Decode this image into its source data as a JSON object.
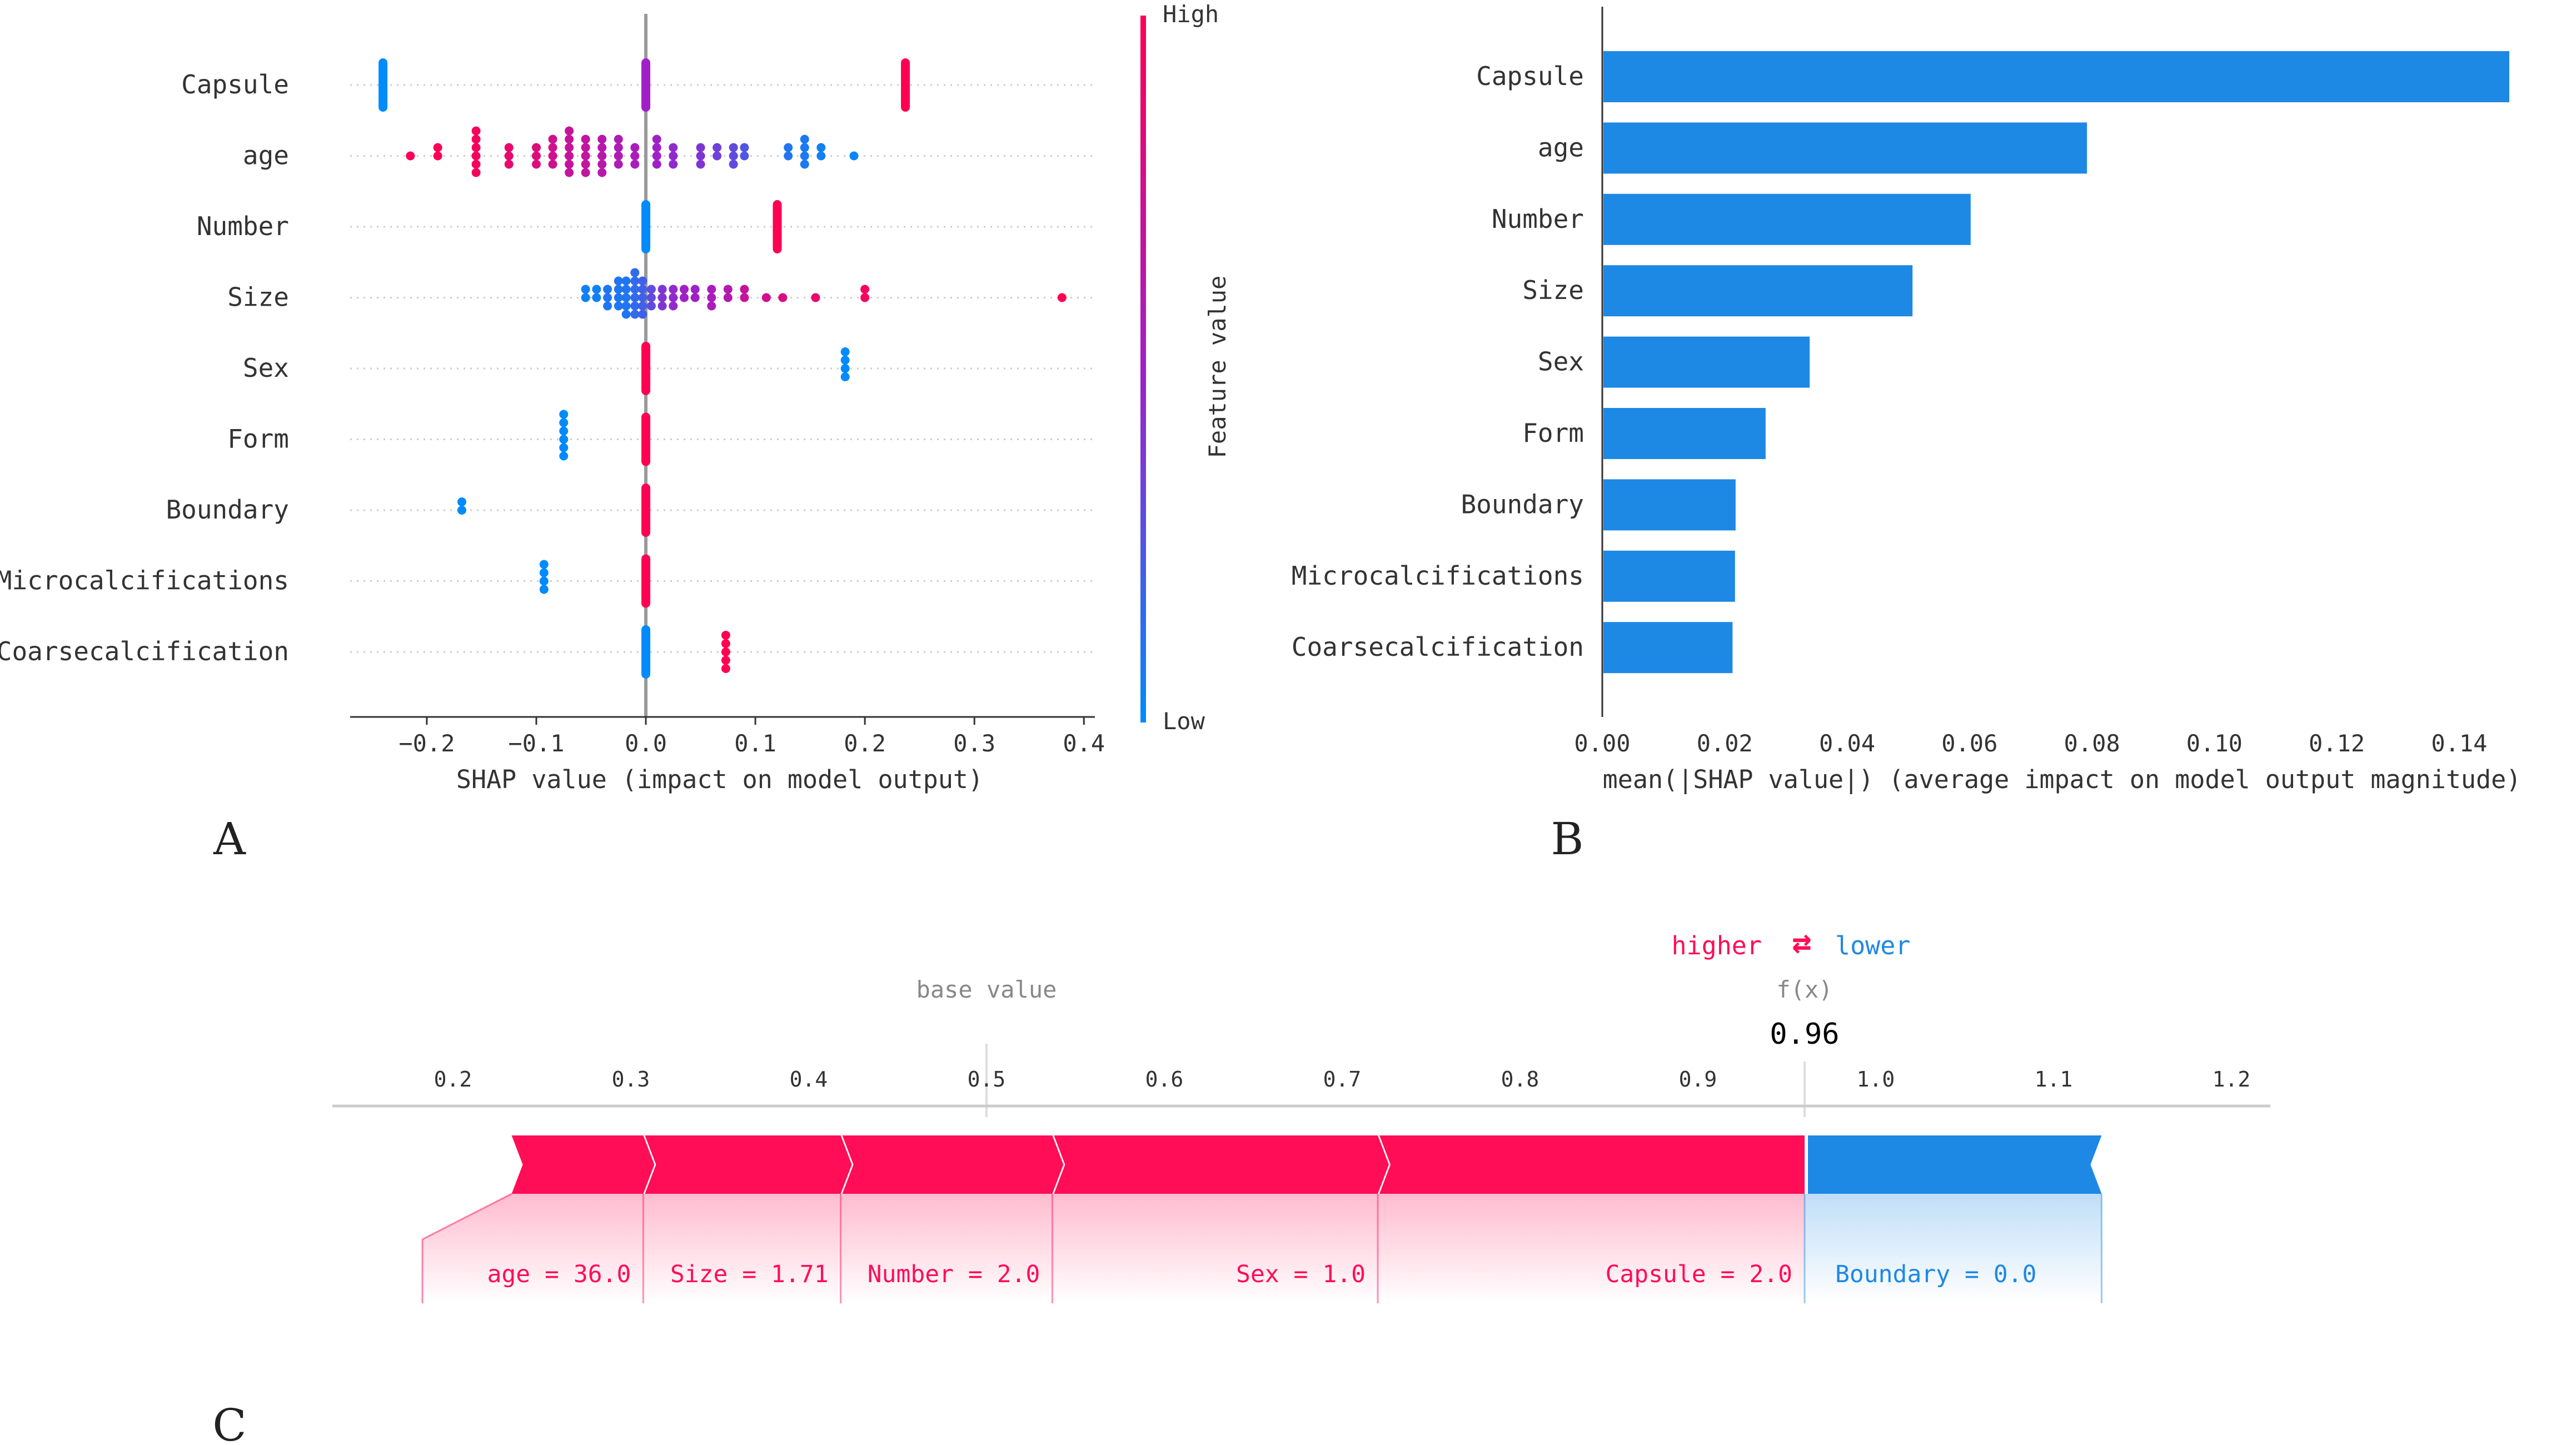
{
  "colors": {
    "high": "#ff0d57",
    "low": "#1e88e5",
    "mid": "#a020c8",
    "grid": "#cccccc",
    "axis": "#333333",
    "text": "#333333",
    "force_text_grey": "#888888"
  },
  "panel_labels": {
    "a": "A",
    "b": "B",
    "c": "C"
  },
  "chart_data": [
    {
      "id": "A",
      "type": "scatter",
      "subtype": "shap-beeswarm",
      "xlabel": "SHAP value (impact on model output)",
      "xlim": [
        -0.27,
        0.41
      ],
      "xticks": [
        -0.2,
        -0.1,
        0.0,
        0.1,
        0.2,
        0.3,
        0.4
      ],
      "xtick_labels": [
        "−0.2",
        "−0.1",
        "0.0",
        "0.1",
        "0.2",
        "0.3",
        "0.4"
      ],
      "features": [
        "Capsule",
        "age",
        "Number",
        "Size",
        "Sex",
        "Form",
        "Boundary",
        "Microcalcifications",
        "Coarsecalcification"
      ],
      "colorbar": {
        "label": "Feature value",
        "high": "High",
        "low": "Low"
      },
      "series": [
        {
          "feature": "Capsule",
          "points": [
            {
              "x": -0.24,
              "v": 0.0,
              "n": 10
            },
            {
              "x": 0.0,
              "v": 0.5,
              "n": 10
            },
            {
              "x": 0.237,
              "v": 1.0,
              "n": 10
            }
          ]
        },
        {
          "feature": "age",
          "points": [
            {
              "x": -0.215,
              "v": 0.98,
              "n": 1
            },
            {
              "x": -0.19,
              "v": 0.98,
              "n": 2
            },
            {
              "x": -0.155,
              "v": 0.95,
              "n": 6
            },
            {
              "x": -0.125,
              "v": 0.88,
              "n": 3
            },
            {
              "x": -0.1,
              "v": 0.82,
              "n": 3
            },
            {
              "x": -0.085,
              "v": 0.75,
              "n": 4
            },
            {
              "x": -0.07,
              "v": 0.7,
              "n": 6
            },
            {
              "x": -0.055,
              "v": 0.68,
              "n": 5
            },
            {
              "x": -0.04,
              "v": 0.62,
              "n": 5
            },
            {
              "x": -0.025,
              "v": 0.58,
              "n": 4
            },
            {
              "x": -0.01,
              "v": 0.55,
              "n": 3
            },
            {
              "x": 0.01,
              "v": 0.5,
              "n": 4
            },
            {
              "x": 0.025,
              "v": 0.45,
              "n": 3
            },
            {
              "x": 0.05,
              "v": 0.4,
              "n": 3
            },
            {
              "x": 0.065,
              "v": 0.35,
              "n": 2
            },
            {
              "x": 0.08,
              "v": 0.3,
              "n": 3
            },
            {
              "x": 0.09,
              "v": 0.25,
              "n": 2
            },
            {
              "x": 0.13,
              "v": 0.1,
              "n": 2
            },
            {
              "x": 0.145,
              "v": 0.08,
              "n": 4
            },
            {
              "x": 0.16,
              "v": 0.05,
              "n": 2
            },
            {
              "x": 0.19,
              "v": 0.02,
              "n": 1
            }
          ]
        },
        {
          "feature": "Number",
          "points": [
            {
              "x": 0.0,
              "v": 0.0,
              "n": 10
            },
            {
              "x": 0.12,
              "v": 1.0,
              "n": 10
            }
          ]
        },
        {
          "feature": "Size",
          "points": [
            {
              "x": -0.055,
              "v": 0.05,
              "n": 2
            },
            {
              "x": -0.045,
              "v": 0.05,
              "n": 2
            },
            {
              "x": -0.035,
              "v": 0.1,
              "n": 3
            },
            {
              "x": -0.025,
              "v": 0.1,
              "n": 4
            },
            {
              "x": -0.018,
              "v": 0.1,
              "n": 5
            },
            {
              "x": -0.01,
              "v": 0.15,
              "n": 6
            },
            {
              "x": -0.003,
              "v": 0.2,
              "n": 5
            },
            {
              "x": 0.005,
              "v": 0.3,
              "n": 3
            },
            {
              "x": 0.015,
              "v": 0.4,
              "n": 3
            },
            {
              "x": 0.025,
              "v": 0.45,
              "n": 3
            },
            {
              "x": 0.035,
              "v": 0.5,
              "n": 2
            },
            {
              "x": 0.045,
              "v": 0.5,
              "n": 2
            },
            {
              "x": 0.06,
              "v": 0.55,
              "n": 3
            },
            {
              "x": 0.075,
              "v": 0.6,
              "n": 2
            },
            {
              "x": 0.09,
              "v": 0.7,
              "n": 2
            },
            {
              "x": 0.11,
              "v": 0.75,
              "n": 1
            },
            {
              "x": 0.125,
              "v": 0.8,
              "n": 1
            },
            {
              "x": 0.155,
              "v": 0.9,
              "n": 1
            },
            {
              "x": 0.2,
              "v": 0.95,
              "n": 2
            },
            {
              "x": 0.38,
              "v": 1.0,
              "n": 1
            }
          ]
        },
        {
          "feature": "Sex",
          "points": [
            {
              "x": 0.0,
              "v": 1.0,
              "n": 10
            },
            {
              "x": 0.182,
              "v": 0.0,
              "n": 4
            }
          ]
        },
        {
          "feature": "Form",
          "points": [
            {
              "x": -0.075,
              "v": 0.0,
              "n": 6
            },
            {
              "x": 0.0,
              "v": 1.0,
              "n": 10
            }
          ]
        },
        {
          "feature": "Boundary",
          "points": [
            {
              "x": -0.168,
              "v": 0.0,
              "n": 2
            },
            {
              "x": 0.0,
              "v": 1.0,
              "n": 10
            }
          ]
        },
        {
          "feature": "Microcalcifications",
          "points": [
            {
              "x": -0.093,
              "v": 0.0,
              "n": 4
            },
            {
              "x": 0.0,
              "v": 1.0,
              "n": 10
            }
          ]
        },
        {
          "feature": "Coarsecalcification",
          "points": [
            {
              "x": 0.0,
              "v": 0.0,
              "n": 10
            },
            {
              "x": 0.073,
              "v": 1.0,
              "n": 5
            }
          ]
        }
      ]
    },
    {
      "id": "B",
      "type": "bar",
      "orientation": "horizontal",
      "xlabel": "mean(|SHAP value|) (average impact on model output magnitude)",
      "xlim": [
        0,
        0.15
      ],
      "xticks": [
        0.0,
        0.02,
        0.04,
        0.06,
        0.08,
        0.1,
        0.12,
        0.14
      ],
      "xtick_labels": [
        "0.00",
        "0.02",
        "0.04",
        "0.06",
        "0.08",
        "0.10",
        "0.12",
        "0.14"
      ],
      "categories": [
        "Capsule",
        "age",
        "Number",
        "Size",
        "Sex",
        "Form",
        "Boundary",
        "Microcalcifications",
        "Coarsecalcification"
      ],
      "values": [
        0.148,
        0.079,
        0.06,
        0.0505,
        0.0337,
        0.0265,
        0.0216,
        0.0215,
        0.0211
      ]
    },
    {
      "id": "C",
      "type": "bar",
      "subtype": "shap-force",
      "legend": {
        "higher": "higher",
        "arrows": "⇄",
        "lower": "lower"
      },
      "base_value_label": "base value",
      "fx_label": "f(x)",
      "fx_value": "0.96",
      "base_value": 0.5,
      "fx": 0.96,
      "xlim": [
        0.135,
        1.225
      ],
      "xticks": [
        0.2,
        0.3,
        0.4,
        0.5,
        0.6,
        0.7,
        0.8,
        0.9,
        1.0,
        1.1,
        1.2
      ],
      "xtick_labels": [
        "0.2",
        "0.3",
        "0.4",
        "0.5",
        "0.6",
        "0.7",
        "0.8",
        "0.9",
        "1.0",
        "1.1",
        "1.2"
      ],
      "higher_segments": [
        {
          "start": 0.233,
          "end": 0.307,
          "label": "age = 36.0"
        },
        {
          "start": 0.307,
          "end": 0.418,
          "label": "Size = 1.71"
        },
        {
          "start": 0.418,
          "end": 0.537,
          "label": "Number = 2.0"
        },
        {
          "start": 0.537,
          "end": 0.72,
          "label": "Sex = 1.0"
        },
        {
          "start": 0.72,
          "end": 0.96,
          "label": "Capsule = 2.0"
        }
      ],
      "lower_segments": [
        {
          "start": 0.96,
          "end": 1.127,
          "label": "Boundary = 0.0"
        }
      ]
    }
  ]
}
